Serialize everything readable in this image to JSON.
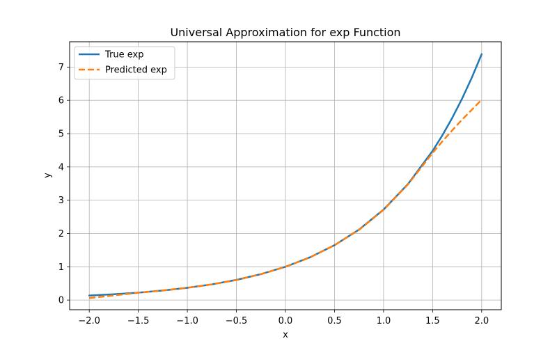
{
  "chart_data": {
    "type": "line",
    "title": "Universal Approximation for exp Function",
    "xlabel": "x",
    "ylabel": "y",
    "xlim": [
      -2.2,
      2.2
    ],
    "ylim": [
      -0.29,
      7.76
    ],
    "x_ticks": [
      -2.0,
      -1.5,
      -1.0,
      -0.5,
      0.0,
      0.5,
      1.0,
      1.5,
      2.0
    ],
    "x_tick_labels": [
      "−2.0",
      "−1.5",
      "−1.0",
      "−0.5",
      "0.0",
      "0.5",
      "1.0",
      "1.5",
      "2.0"
    ],
    "y_ticks": [
      0,
      1,
      2,
      3,
      4,
      5,
      6,
      7
    ],
    "y_tick_labels": [
      "0",
      "1",
      "2",
      "3",
      "4",
      "5",
      "6",
      "7"
    ],
    "grid": true,
    "legend": "top-left",
    "series": [
      {
        "name": "True exp",
        "color": "#1f77b4",
        "style": "solid",
        "x": [
          -2.0,
          -1.75,
          -1.5,
          -1.25,
          -1.0,
          -0.75,
          -0.5,
          -0.25,
          0.0,
          0.25,
          0.5,
          0.75,
          1.0,
          1.25,
          1.5,
          1.6,
          1.7,
          1.8,
          1.9,
          2.0
        ],
        "y": [
          0.135,
          0.174,
          0.223,
          0.287,
          0.368,
          0.472,
          0.607,
          0.779,
          1.0,
          1.284,
          1.649,
          2.117,
          2.718,
          3.49,
          4.482,
          4.953,
          5.474,
          6.05,
          6.686,
          7.389
        ]
      },
      {
        "name": "Predicted exp",
        "color": "#ff7f0e",
        "style": "dashed",
        "x": [
          -2.0,
          -1.75,
          -1.5,
          -1.25,
          -1.0,
          -0.75,
          -0.5,
          -0.25,
          0.0,
          0.25,
          0.5,
          0.75,
          1.0,
          1.25,
          1.5,
          1.6,
          1.7,
          1.8,
          1.9,
          2.0
        ],
        "y": [
          0.06,
          0.14,
          0.22,
          0.29,
          0.37,
          0.47,
          0.6,
          0.78,
          1.0,
          1.28,
          1.65,
          2.11,
          2.71,
          3.48,
          4.42,
          4.77,
          5.1,
          5.42,
          5.72,
          6.02
        ]
      }
    ]
  }
}
